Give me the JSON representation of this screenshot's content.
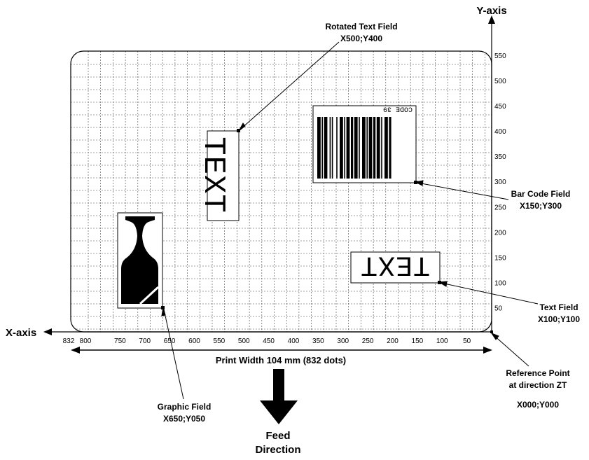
{
  "axes": {
    "y_axis_label": "Y-axis",
    "x_axis_label": "X-axis",
    "y_ticks": [
      "550",
      "500",
      "450",
      "400",
      "350",
      "300",
      "250",
      "200",
      "150",
      "100",
      "50"
    ],
    "x_ticks": [
      "832",
      "800",
      "750",
      "700",
      "650",
      "600",
      "550",
      "500",
      "450",
      "400",
      "350",
      "300",
      "250",
      "200",
      "150",
      "100",
      "50"
    ]
  },
  "print_width_label": "Print Width 104 mm (832 dots)",
  "feed": {
    "line1": "Feed",
    "line2": "Direction"
  },
  "callouts": {
    "rotated_text": {
      "title": "Rotated Text Field",
      "coords": "X500;Y400"
    },
    "bar_code": {
      "title": "Bar Code Field",
      "coords": "X150;Y300"
    },
    "text_field": {
      "title": "Text Field",
      "coords": "X100;Y100"
    },
    "graphic": {
      "title": "Graphic Field",
      "coords": "X650;Y050"
    },
    "reference": {
      "title1": "Reference Point",
      "title2": "at direction ZT",
      "coords": "X000;Y000"
    }
  },
  "fields": {
    "rotated_text_content": "TEXT",
    "text_content": "TEXT",
    "barcode_caption": "CODE 39"
  },
  "colors": {
    "ink": "#000000",
    "grid": "#444444"
  }
}
